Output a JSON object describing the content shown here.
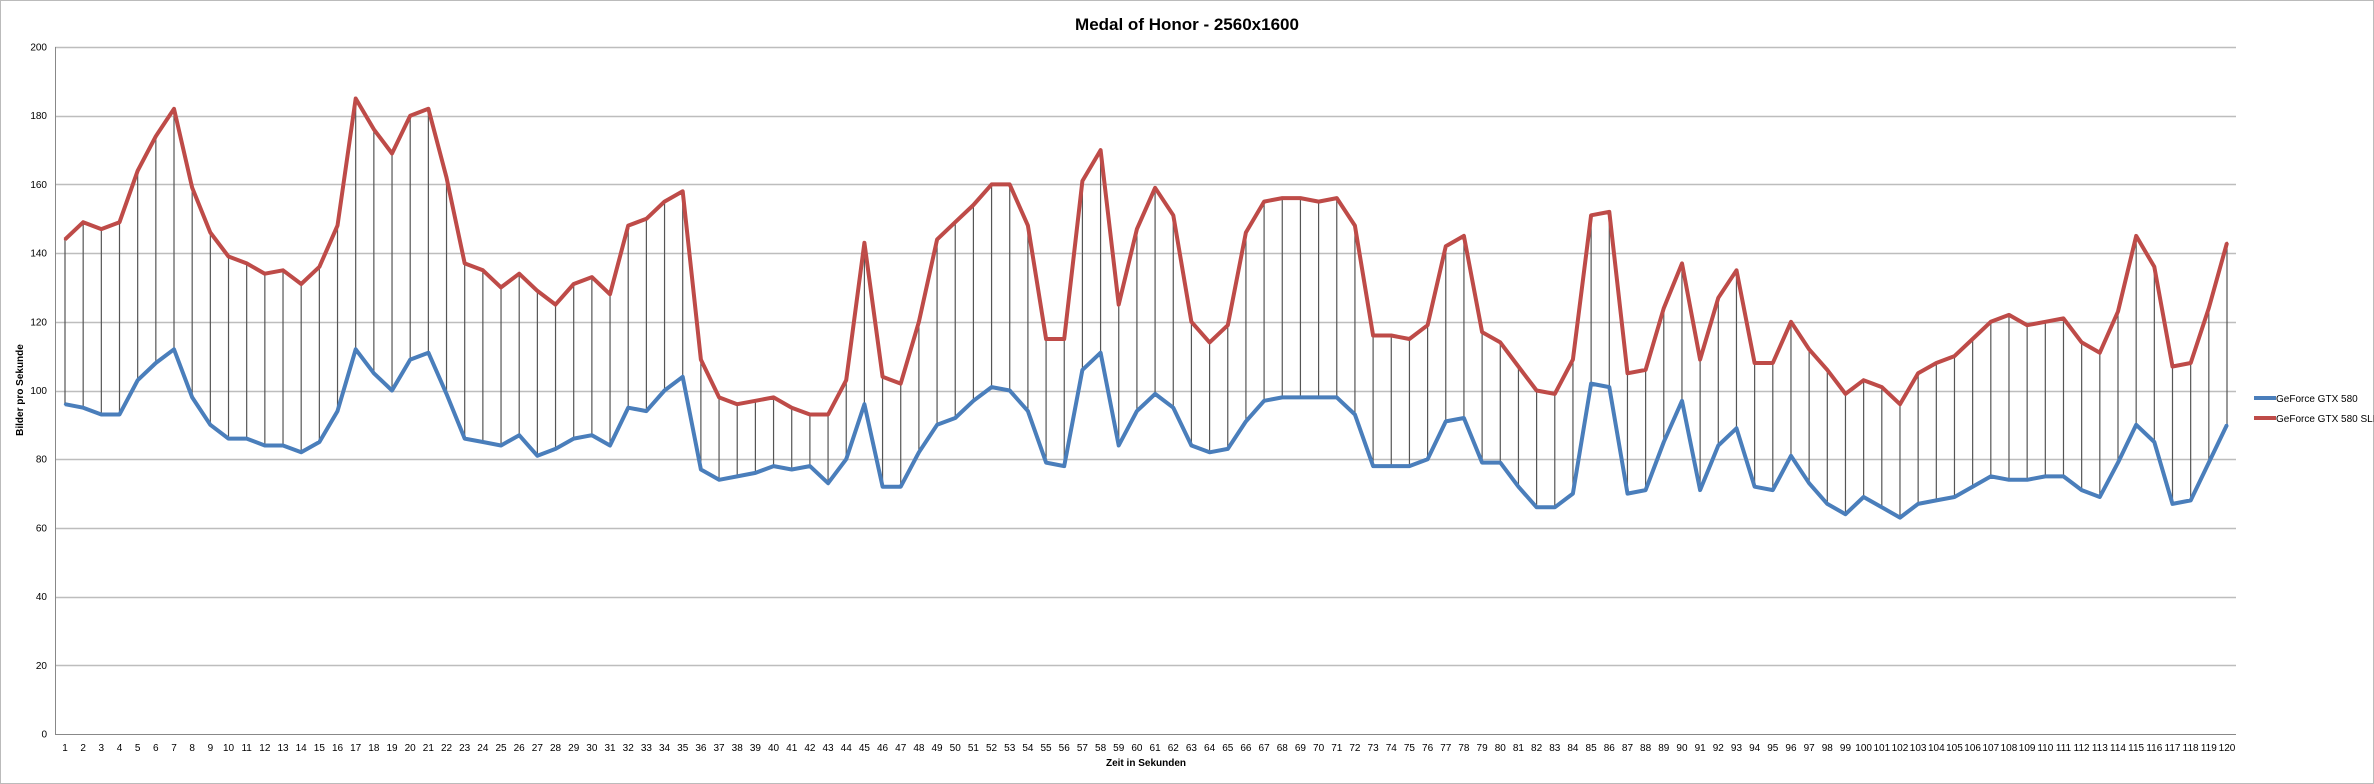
{
  "chart_data": {
    "type": "line",
    "title": "Medal of Honor - 2560x1600",
    "xlabel": "Zeit in Sekunden",
    "ylabel": "Bilder pro Sekunde",
    "ylim": [
      0,
      200
    ],
    "yticks": [
      0,
      20,
      40,
      60,
      80,
      100,
      120,
      140,
      160,
      180,
      200
    ],
    "grid": true,
    "high_low_lines": true,
    "legend": "right",
    "x": [
      1,
      2,
      3,
      4,
      5,
      6,
      7,
      8,
      9,
      10,
      11,
      12,
      13,
      14,
      15,
      16,
      17,
      18,
      19,
      20,
      21,
      22,
      23,
      24,
      25,
      26,
      27,
      28,
      29,
      30,
      31,
      32,
      33,
      34,
      35,
      36,
      37,
      38,
      39,
      40,
      41,
      42,
      43,
      44,
      45,
      46,
      47,
      48,
      49,
      50,
      51,
      52,
      53,
      54,
      55,
      56,
      57,
      58,
      59,
      60,
      61,
      62,
      63,
      64,
      65,
      66,
      67,
      68,
      69,
      70,
      71,
      72,
      73,
      74,
      75,
      76,
      77,
      78,
      79,
      80,
      81,
      82,
      83,
      84,
      85,
      86,
      87,
      88,
      89,
      90,
      91,
      92,
      93,
      94,
      95,
      96,
      97,
      98,
      99,
      100,
      101,
      102,
      103,
      104,
      105,
      106,
      107,
      108,
      109,
      110,
      111,
      112,
      113,
      114,
      115,
      116,
      117,
      118,
      119,
      120
    ],
    "series": [
      {
        "name": "GeForce GTX 580",
        "color": "#4a7ebb",
        "values": [
          96,
          95,
          93,
          93,
          103,
          108,
          112,
          98,
          90,
          86,
          86,
          84,
          84,
          82,
          85,
          94,
          112,
          105,
          100,
          109,
          111,
          99,
          86,
          85,
          84,
          87,
          81,
          83,
          86,
          87,
          84,
          95,
          94,
          100,
          104,
          77,
          74,
          75,
          76,
          78,
          77,
          78,
          73,
          80,
          96,
          72,
          72,
          82,
          90,
          92,
          97,
          101,
          100,
          94,
          79,
          78,
          106,
          111,
          84,
          94,
          99,
          95,
          84,
          82,
          83,
          91,
          97,
          98,
          98,
          98,
          98,
          93,
          78,
          78,
          78,
          80,
          91,
          92,
          79,
          79,
          72,
          66,
          66,
          70,
          102,
          101,
          70,
          71,
          85,
          97,
          71,
          84,
          89,
          72,
          71,
          81,
          73,
          67,
          64,
          69,
          66,
          63,
          67,
          68,
          69,
          72,
          75,
          74,
          74,
          75,
          75,
          71,
          69,
          79,
          90,
          85,
          67,
          68,
          79,
          90
        ]
      },
      {
        "name": "GeForce GTX 580 SLI",
        "color": "#be4b48",
        "values": [
          144,
          149,
          147,
          149,
          164,
          174,
          182,
          159,
          146,
          139,
          137,
          134,
          135,
          131,
          136,
          148,
          185,
          176,
          169,
          180,
          182,
          162,
          137,
          135,
          130,
          134,
          129,
          125,
          131,
          133,
          128,
          148,
          150,
          155,
          158,
          109,
          98,
          96,
          97,
          98,
          95,
          93,
          93,
          103,
          143,
          104,
          102,
          120,
          144,
          149,
          154,
          160,
          160,
          148,
          115,
          115,
          161,
          170,
          125,
          147,
          159,
          151,
          120,
          114,
          119,
          146,
          155,
          156,
          156,
          155,
          156,
          148,
          116,
          116,
          115,
          119,
          142,
          145,
          117,
          114,
          107,
          100,
          99,
          109,
          151,
          152,
          105,
          106,
          124,
          137,
          109,
          127,
          135,
          108,
          108,
          120,
          112,
          106,
          99,
          103,
          101,
          96,
          105,
          108,
          110,
          115,
          120,
          122,
          119,
          120,
          121,
          114,
          111,
          123,
          145,
          136,
          107,
          108,
          124,
          143
        ]
      }
    ]
  }
}
